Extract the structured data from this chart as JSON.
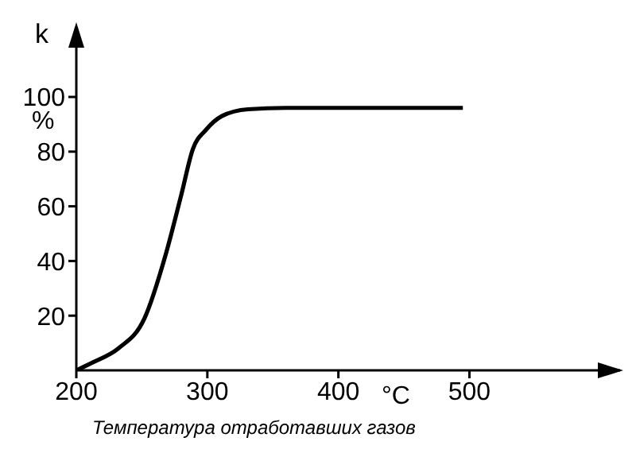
{
  "chart_data": {
    "type": "line",
    "ylabel": "k",
    "xlabel": "Температура отработавших газов",
    "annotations": [
      "%",
      "°C"
    ],
    "x": [
      200,
      213,
      232,
      252,
      268,
      280,
      289,
      299,
      311,
      331,
      360,
      389,
      430,
      470,
      495
    ],
    "series": [
      {
        "color": "#000000",
        "values": [
          0,
          3,
          8,
          19,
          42,
          64,
          81,
          88,
          93,
          95.5,
          96,
          96,
          96,
          96,
          96
        ]
      }
    ],
    "xlim": [
      200,
      615
    ],
    "ylim": [
      0,
      125
    ],
    "xticks": [
      200,
      300,
      400,
      500
    ],
    "yticks": [
      20,
      40,
      60,
      80,
      100
    ]
  }
}
